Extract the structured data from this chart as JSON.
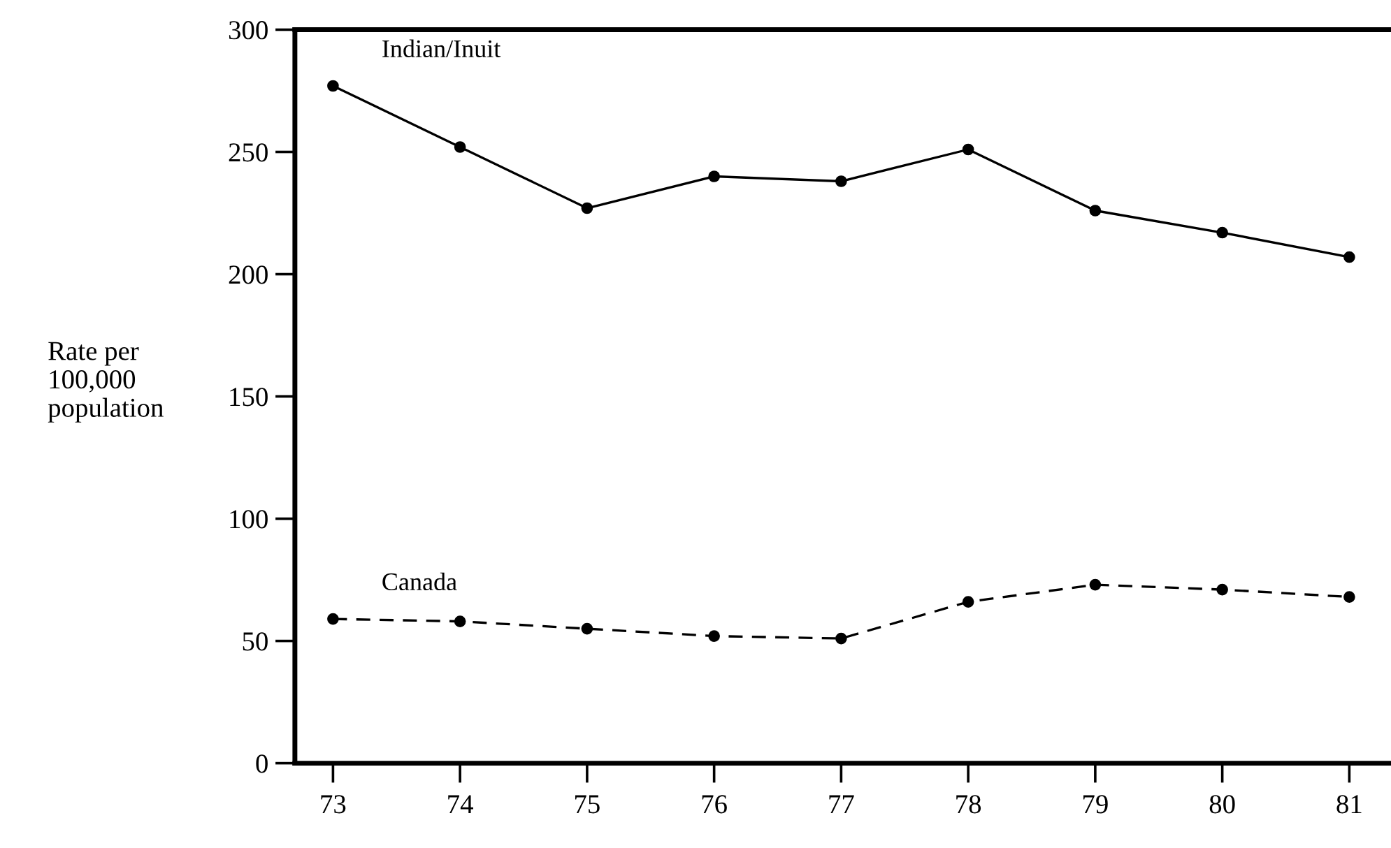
{
  "chart_data": {
    "type": "line",
    "ylabel": "Rate per\n100,000\npopulation",
    "x": [
      73,
      74,
      75,
      76,
      77,
      78,
      79,
      80,
      81
    ],
    "xlim": [
      72.7,
      81.35
    ],
    "xticks": [
      73,
      74,
      75,
      76,
      77,
      78,
      79,
      80,
      81
    ],
    "ylim": [
      0,
      300
    ],
    "yticks": [
      0,
      50,
      100,
      150,
      200,
      250,
      300
    ],
    "series": [
      {
        "name": "Indian/Inuit",
        "color": "#000000",
        "line_style": "solid",
        "values": [
          277,
          252,
          227,
          240,
          238,
          251,
          226,
          217,
          207
        ]
      },
      {
        "name": "Canada",
        "color": "#000000",
        "line_style": "dashed",
        "values": [
          59,
          58,
          55,
          52,
          51,
          66,
          73,
          71,
          68
        ]
      }
    ],
    "marker": "circle",
    "grid": false,
    "legend": false
  }
}
